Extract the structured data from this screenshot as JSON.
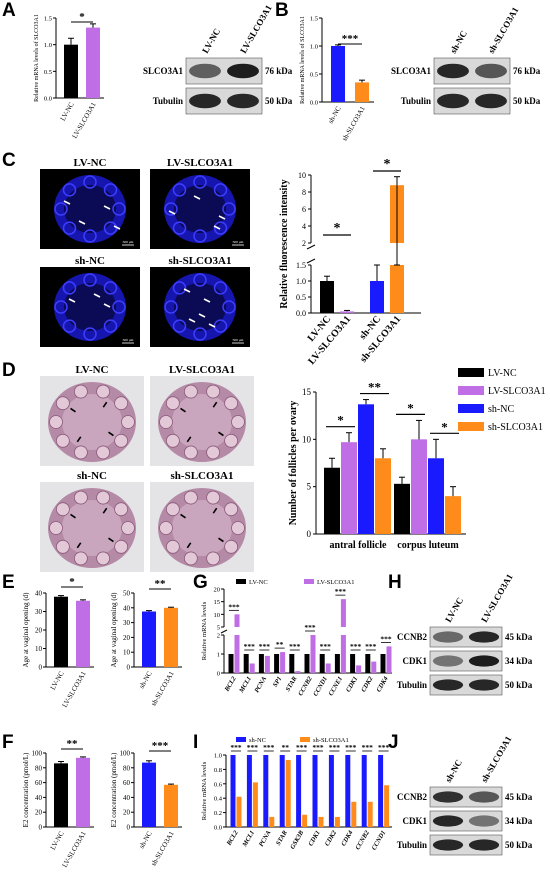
{
  "panels": {
    "A": {
      "label": "A",
      "chart_data": {
        "type": "bar",
        "ylabel": "Relative mRNA levels of SLCO3A1",
        "categories": [
          "LV-NC",
          "LV-SLCO3A1"
        ],
        "values": [
          1.0,
          1.32
        ],
        "errors": [
          0.12,
          0.07
        ],
        "ylim": [
          0,
          1.5
        ],
        "yticks": [
          "0.0",
          "0.5",
          "1.0",
          "1.5"
        ],
        "colors": [
          "#000000",
          "#c06ee6"
        ],
        "sig": [
          {
            "from": 0,
            "to": 1,
            "label": "*"
          }
        ]
      },
      "blot": {
        "lanes": [
          "LV-NC",
          "LV-SLCO3A1"
        ],
        "rows": [
          {
            "name": "SLCO3A1",
            "kda": "76 kDa",
            "intensity": [
              0.55,
              0.9
            ]
          },
          {
            "name": "Tubulin",
            "kda": "50 kDa",
            "intensity": [
              0.85,
              0.85
            ]
          }
        ]
      }
    },
    "B": {
      "label": "B",
      "chart_data": {
        "type": "bar",
        "ylabel": "Relative mRNA levels of SLCO3A1",
        "categories": [
          "sh-NC",
          "sh-SLCO3A1"
        ],
        "values": [
          1.0,
          0.35
        ],
        "errors": [
          0.02,
          0.04
        ],
        "ylim": [
          0,
          1.5
        ],
        "yticks": [
          "0.0",
          "0.5",
          "1.0",
          "1.5"
        ],
        "colors": [
          "#1a1aff",
          "#ff8c1a"
        ],
        "sig": [
          {
            "from": 0,
            "to": 1,
            "label": "***"
          }
        ]
      },
      "blot": {
        "lanes": [
          "sh-NC",
          "sh-SLCO3A1"
        ],
        "rows": [
          {
            "name": "SLCO3A1",
            "kda": "76 kDa",
            "intensity": [
              0.85,
              0.6
            ]
          },
          {
            "name": "Tubulin",
            "kda": "50 kDa",
            "intensity": [
              0.85,
              0.85
            ]
          }
        ]
      }
    },
    "C": {
      "label": "C",
      "images": [
        {
          "title": "LV-NC",
          "scale": "500 μm"
        },
        {
          "title": "LV-SLCO3A1",
          "scale": "500 μm"
        },
        {
          "title": "sh-NC",
          "scale": "500 μm"
        },
        {
          "title": "sh-SLCO3A1",
          "scale": "500 μm"
        }
      ],
      "chart_data": {
        "type": "bar",
        "ylabel": "Relative fluorescence intensity",
        "categories": [
          "LV-NC",
          "LV-SLCO3A1",
          "sh-NC",
          "sh-SLCO3A1"
        ],
        "values": [
          1.0,
          0.05,
          1.0,
          8.8
        ],
        "errors": [
          0.15,
          0.03,
          0.75,
          1.0
        ],
        "ylim": [
          0,
          10
        ],
        "yticks": [
          "0.0",
          "0.5",
          "1.0",
          "1.5",
          "2",
          "4",
          "6",
          "8",
          "10"
        ],
        "axis_break": true,
        "colors": [
          "#000000",
          "#c06ee6",
          "#1a1aff",
          "#ff8c1a"
        ],
        "sig": [
          {
            "from": 0,
            "to": 1,
            "label": "*"
          },
          {
            "from": 2,
            "to": 3,
            "label": "*"
          }
        ]
      }
    },
    "D": {
      "label": "D",
      "images": [
        {
          "title": "LV-NC"
        },
        {
          "title": "LV-SLCO3A1"
        },
        {
          "title": "sh-NC"
        },
        {
          "title": "sh-SLCO3A1"
        }
      ],
      "chart_data": {
        "type": "bar",
        "ylabel": "Number of follicles per ovary",
        "categories": [
          "antral follicle",
          "corpus luteum"
        ],
        "series": [
          {
            "name": "LV-NC",
            "color": "#000000",
            "values": [
              7,
              5.3
            ],
            "errors": [
              1,
              0.7
            ]
          },
          {
            "name": "LV-SLCO3A1",
            "color": "#c06ee6",
            "values": [
              9.7,
              10
            ],
            "errors": [
              1,
              2
            ]
          },
          {
            "name": "sh-NC",
            "color": "#1a1aff",
            "values": [
              13.7,
              8
            ],
            "errors": [
              0.5,
              2
            ]
          },
          {
            "name": "sh-SLCO3A1",
            "color": "#ff8c1a",
            "values": [
              8,
              4
            ],
            "errors": [
              1,
              1
            ]
          }
        ],
        "ylim": [
          0,
          15
        ],
        "yticks": [
          "0",
          "5",
          "10",
          "15"
        ],
        "legend_position": "top-right",
        "sig": [
          {
            "group": 0,
            "from": 0,
            "to": 1,
            "label": "*"
          },
          {
            "group": 0,
            "from": 2,
            "to": 3,
            "label": "**"
          },
          {
            "group": 1,
            "from": 0,
            "to": 1,
            "label": "*"
          },
          {
            "group": 1,
            "from": 2,
            "to": 3,
            "label": "*"
          }
        ]
      }
    },
    "E": {
      "label": "E",
      "charts": [
        {
          "type": "bar",
          "ylabel": "Age at vaginal opening (d)",
          "categories": [
            "LV-NC",
            "LV-SLCO3A1"
          ],
          "values": [
            38,
            35.8
          ],
          "errors": [
            0.6,
            0.5
          ],
          "ylim": [
            0,
            40
          ],
          "yticks": [
            "0",
            "10",
            "20",
            "30",
            "40"
          ],
          "colors": [
            "#000000",
            "#c06ee6"
          ],
          "sig": "*"
        },
        {
          "type": "bar",
          "ylabel": "Age at vaginal opening (d)",
          "categories": [
            "sh-NC",
            "sh-SLCO3A1"
          ],
          "values": [
            37.5,
            40
          ],
          "errors": [
            0.6,
            0.4
          ],
          "ylim": [
            0,
            50
          ],
          "yticks": [
            "0",
            "10",
            "20",
            "30",
            "40",
            "50"
          ],
          "colors": [
            "#1a1aff",
            "#ff8c1a"
          ],
          "sig": "**"
        }
      ]
    },
    "F": {
      "label": "F",
      "charts": [
        {
          "type": "bar",
          "ylabel": "E2 concentration (pmol/L)",
          "categories": [
            "LV-NC",
            "LV-SLCO3A1"
          ],
          "values": [
            86,
            93.5
          ],
          "errors": [
            2.5,
            1.2
          ],
          "ylim": [
            0,
            100
          ],
          "yticks": [
            "0",
            "20",
            "40",
            "60",
            "80",
            "100"
          ],
          "colors": [
            "#000000",
            "#c06ee6"
          ],
          "sig": "**"
        },
        {
          "type": "bar",
          "ylabel": "E2 concentration (pmol/L)",
          "categories": [
            "sh-NC",
            "sh-SLCO3A1"
          ],
          "values": [
            87,
            57
          ],
          "errors": [
            2.5,
            1
          ],
          "ylim": [
            0,
            100
          ],
          "yticks": [
            "0",
            "20",
            "40",
            "60",
            "80",
            "100"
          ],
          "colors": [
            "#1a1aff",
            "#ff8c1a"
          ],
          "sig": "***"
        }
      ]
    },
    "G": {
      "label": "G",
      "chart_data": {
        "type": "bar",
        "ylabel": "Relative mRNA levels",
        "categories": [
          "BCL2",
          "MCL1",
          "PCNA",
          "SP1",
          "STAR",
          "CCNB2",
          "CCND1",
          "CCNE1",
          "CDK1",
          "CDK2",
          "CDK4"
        ],
        "series": [
          {
            "name": "LV-NC",
            "color": "#000000",
            "values": [
              1,
              1,
              1,
              1,
              1,
              1,
              1,
              1,
              1,
              1,
              1
            ]
          },
          {
            "name": "LV-SLCO3A1",
            "color": "#c06ee6",
            "values": [
              10,
              0.5,
              0.9,
              1.1,
              0.1,
              2,
              0.5,
              16,
              0.4,
              0.6,
              1.4
            ]
          }
        ],
        "ylim": [
          0,
          20
        ],
        "yticks": [
          "0",
          "1",
          "2",
          "5",
          "10",
          "15",
          "20"
        ],
        "axis_break": true,
        "legend_position": "top",
        "sig": [
          "***",
          "***",
          "***",
          "**",
          "***",
          "***",
          "***",
          "***",
          "***",
          "***",
          "***"
        ]
      },
      "blot": {
        "panel": "H",
        "lanes": [
          "LV-NC",
          "LV-SLCO3A1"
        ],
        "rows": [
          {
            "name": "CCNB2",
            "kda": "45 kDa",
            "intensity": [
              0.5,
              0.85
            ]
          },
          {
            "name": "CDK1",
            "kda": "34 kDa",
            "intensity": [
              0.45,
              0.9
            ]
          },
          {
            "name": "Tubulin",
            "kda": "50 kDa",
            "intensity": [
              0.85,
              0.85
            ]
          }
        ]
      }
    },
    "I": {
      "label": "I",
      "chart_data": {
        "type": "bar",
        "ylabel": "Relative mRNA levels",
        "categories": [
          "BCL2",
          "MCL1",
          "PCNA",
          "STAR",
          "GSK3B",
          "CDK1",
          "CDK2",
          "CDK4",
          "CCNB2",
          "CCND1"
        ],
        "series": [
          {
            "name": "sh-NC",
            "color": "#1a1aff",
            "values": [
              1,
              1,
              1,
              1,
              1,
              1,
              1,
              1,
              1,
              1
            ]
          },
          {
            "name": "sh-SLCO3A1",
            "color": "#ff8c1a",
            "values": [
              0.42,
              0.62,
              0.14,
              0.93,
              0.17,
              0.14,
              0.14,
              0.35,
              0.35,
              0.58
            ]
          }
        ],
        "ylim": [
          0,
          1.0
        ],
        "yticks": [
          "0.0",
          "0.2",
          "0.4",
          "0.6",
          "0.8",
          "1.0"
        ],
        "legend_position": "top",
        "sig": [
          "***",
          "***",
          "***",
          "**",
          "***",
          "***",
          "***",
          "***",
          "***",
          "***"
        ]
      },
      "blot": {
        "panel": "J",
        "lanes": [
          "sh-NC",
          "sh-SLCO3A1"
        ],
        "rows": [
          {
            "name": "CCNB2",
            "kda": "45 kDa",
            "intensity": [
              0.8,
              0.6
            ]
          },
          {
            "name": "CDK1",
            "kda": "34 kDa",
            "intensity": [
              0.85,
              0.45
            ]
          },
          {
            "name": "Tubulin",
            "kda": "50 kDa",
            "intensity": [
              0.85,
              0.85
            ]
          }
        ]
      }
    }
  }
}
